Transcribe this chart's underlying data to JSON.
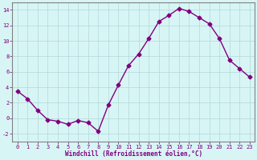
{
  "x": [
    0,
    1,
    2,
    3,
    4,
    5,
    6,
    7,
    8,
    9,
    10,
    11,
    12,
    13,
    14,
    15,
    16,
    17,
    18,
    19,
    20,
    21,
    22,
    23
  ],
  "y": [
    3.5,
    2.5,
    1.0,
    -0.2,
    -0.4,
    -0.8,
    -0.3,
    -0.6,
    -1.7,
    1.7,
    4.3,
    6.8,
    8.3,
    10.3,
    12.5,
    13.3,
    14.2,
    13.8,
    13.0,
    12.2,
    10.3,
    7.5,
    6.4,
    5.3
  ],
  "line_color": "#800080",
  "marker": "D",
  "marker_size": 2.5,
  "bg_color": "#d8f5f5",
  "grid_color": "#b0d8d8",
  "xlabel": "Windchill (Refroidissement éolien,°C)",
  "xlabel_color": "#800080",
  "tick_color": "#800080",
  "spine_color": "#808080",
  "ylim": [
    -3,
    15
  ],
  "xlim": [
    -0.5,
    23.5
  ],
  "yticks": [
    -2,
    0,
    2,
    4,
    6,
    8,
    10,
    12,
    14
  ],
  "xticks": [
    0,
    1,
    2,
    3,
    4,
    5,
    6,
    7,
    8,
    9,
    10,
    11,
    12,
    13,
    14,
    15,
    16,
    17,
    18,
    19,
    20,
    21,
    22,
    23
  ],
  "tick_fontsize": 5,
  "xlabel_fontsize": 5.5,
  "linewidth": 1.0
}
